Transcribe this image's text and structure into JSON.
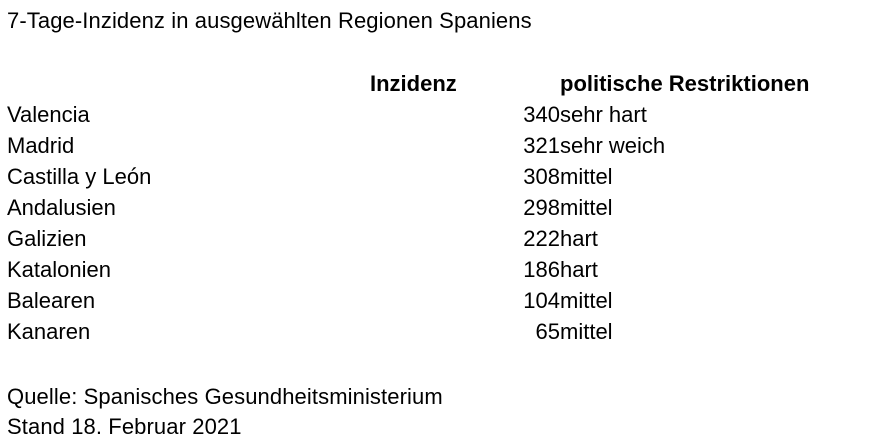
{
  "title": "7-Tage-Inzidenz in ausgewählten Regionen Spaniens",
  "table": {
    "headers": {
      "region": "",
      "incidence": "Inzidenz",
      "restrictions": "politische Restriktionen"
    },
    "rows": [
      {
        "region": "Valencia",
        "incidence": "340",
        "restrictions": "sehr hart"
      },
      {
        "region": "Madrid",
        "incidence": "321",
        "restrictions": "sehr weich"
      },
      {
        "region": "Castilla y León",
        "incidence": "308",
        "restrictions": "mittel"
      },
      {
        "region": "Andalusien",
        "incidence": "298",
        "restrictions": "mittel"
      },
      {
        "region": "Galizien",
        "incidence": "222",
        "restrictions": "hart"
      },
      {
        "region": "Katalonien",
        "incidence": "186",
        "restrictions": "hart"
      },
      {
        "region": "Balearen",
        "incidence": "104",
        "restrictions": "mittel"
      },
      {
        "region": "Kanaren",
        "incidence": "65",
        "restrictions": "mittel"
      }
    ]
  },
  "footer": {
    "source": "Quelle: Spanisches Gesundheitsministerium",
    "date": "Stand 18. Februar 2021"
  },
  "colors": {
    "background": "#ffffff",
    "text": "#000000"
  }
}
